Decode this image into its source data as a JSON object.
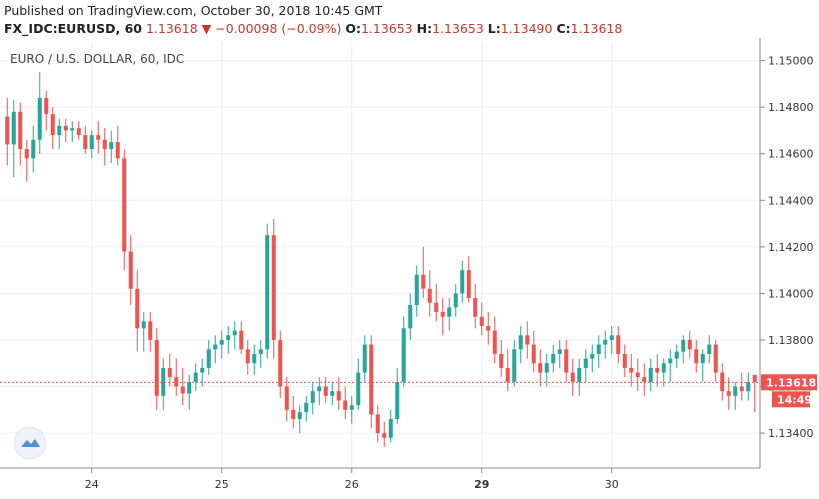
{
  "header": {
    "published": "Published on TradingView.com, October 30, 2018 10:45 GMT",
    "symbol": "FX_IDC:EURUSD, 60",
    "last": "1.13618",
    "change_arrow": "▼",
    "change": "−0.00098 (−0.09%)",
    "o_label": "O:",
    "o_value": "1.13653",
    "h_label": "H:",
    "h_value": "1.13653",
    "l_label": "L:",
    "l_value": "1.13490",
    "c_label": "C:",
    "c_value": "1.13618"
  },
  "colors": {
    "up": "#26a69a",
    "down": "#ef5350",
    "price_line": "#ef5350",
    "grid": "#eeeeee"
  },
  "chart_data": {
    "type": "candlestick",
    "title": "EURO / U.S. DOLLAR, 60, IDC",
    "ylim": [
      1.1325,
      1.1508
    ],
    "y_ticks": [
      "1.15000",
      "1.14800",
      "1.14600",
      "1.14400",
      "1.14200",
      "1.14000",
      "1.13800",
      "1.13600",
      "1.13400"
    ],
    "x_ticks": [
      "24",
      "25",
      "26",
      "29",
      "30"
    ],
    "x_tick_positions": [
      13,
      33,
      53,
      73,
      93
    ],
    "last_price_label": "1.13618",
    "countdown_label": "14:49",
    "last_price": 1.13618,
    "grid": true,
    "candles": [
      [
        1.1476,
        1.1484,
        1.1455,
        1.1464
      ],
      [
        1.1464,
        1.1483,
        1.145,
        1.1478
      ],
      [
        1.1478,
        1.1482,
        1.1455,
        1.1462
      ],
      [
        1.1462,
        1.1466,
        1.1448,
        1.1458
      ],
      [
        1.1458,
        1.1472,
        1.1452,
        1.1466
      ],
      [
        1.1466,
        1.1495,
        1.146,
        1.1484
      ],
      [
        1.1484,
        1.1487,
        1.147,
        1.1477
      ],
      [
        1.1477,
        1.148,
        1.1462,
        1.1468
      ],
      [
        1.1468,
        1.1475,
        1.1462,
        1.1472
      ],
      [
        1.1472,
        1.1475,
        1.1465,
        1.147
      ],
      [
        1.147,
        1.1474,
        1.1465,
        1.1471
      ],
      [
        1.1471,
        1.1474,
        1.1466,
        1.1468
      ],
      [
        1.1468,
        1.1472,
        1.146,
        1.1462
      ],
      [
        1.1462,
        1.147,
        1.1458,
        1.1468
      ],
      [
        1.1468,
        1.1474,
        1.146,
        1.1466
      ],
      [
        1.1466,
        1.1471,
        1.1455,
        1.1462
      ],
      [
        1.1462,
        1.147,
        1.1456,
        1.1465
      ],
      [
        1.1465,
        1.1472,
        1.1455,
        1.1458
      ],
      [
        1.1458,
        1.1462,
        1.141,
        1.1418
      ],
      [
        1.1418,
        1.1425,
        1.1395,
        1.1402
      ],
      [
        1.1402,
        1.141,
        1.1375,
        1.1385
      ],
      [
        1.1385,
        1.1392,
        1.1375,
        1.1388
      ],
      [
        1.1388,
        1.1392,
        1.1375,
        1.138
      ],
      [
        1.138,
        1.1385,
        1.135,
        1.1356
      ],
      [
        1.1356,
        1.1372,
        1.135,
        1.1368
      ],
      [
        1.1368,
        1.1374,
        1.136,
        1.1364
      ],
      [
        1.1364,
        1.1372,
        1.1356,
        1.136
      ],
      [
        1.136,
        1.1368,
        1.1352,
        1.1357
      ],
      [
        1.1357,
        1.1365,
        1.135,
        1.1362
      ],
      [
        1.1362,
        1.137,
        1.1358,
        1.1366
      ],
      [
        1.1366,
        1.1372,
        1.136,
        1.1368
      ],
      [
        1.1368,
        1.138,
        1.1365,
        1.1376
      ],
      [
        1.1376,
        1.1382,
        1.137,
        1.1378
      ],
      [
        1.1378,
        1.1384,
        1.1372,
        1.138
      ],
      [
        1.138,
        1.1386,
        1.1374,
        1.1382
      ],
      [
        1.1382,
        1.1388,
        1.1376,
        1.1384
      ],
      [
        1.1384,
        1.1388,
        1.1374,
        1.1376
      ],
      [
        1.1376,
        1.138,
        1.1365,
        1.137
      ],
      [
        1.137,
        1.1378,
        1.1365,
        1.1374
      ],
      [
        1.1374,
        1.138,
        1.1368,
        1.1376
      ],
      [
        1.1376,
        1.143,
        1.1372,
        1.1425
      ],
      [
        1.1425,
        1.1432,
        1.1372,
        1.138
      ],
      [
        1.138,
        1.1384,
        1.1355,
        1.136
      ],
      [
        1.136,
        1.1364,
        1.1345,
        1.135
      ],
      [
        1.135,
        1.1356,
        1.1342,
        1.1346
      ],
      [
        1.1346,
        1.1352,
        1.134,
        1.1349
      ],
      [
        1.1349,
        1.1356,
        1.1345,
        1.1353
      ],
      [
        1.1353,
        1.1362,
        1.1348,
        1.1358
      ],
      [
        1.1358,
        1.1364,
        1.1352,
        1.136
      ],
      [
        1.136,
        1.1364,
        1.1353,
        1.1356
      ],
      [
        1.1356,
        1.1362,
        1.1352,
        1.1358
      ],
      [
        1.1358,
        1.1364,
        1.135,
        1.1354
      ],
      [
        1.1354,
        1.136,
        1.1346,
        1.135
      ],
      [
        1.135,
        1.1356,
        1.1344,
        1.1352
      ],
      [
        1.1352,
        1.1372,
        1.135,
        1.1366
      ],
      [
        1.1366,
        1.1382,
        1.1362,
        1.1378
      ],
      [
        1.1378,
        1.1382,
        1.1342,
        1.1348
      ],
      [
        1.1348,
        1.1352,
        1.1336,
        1.134
      ],
      [
        1.134,
        1.1345,
        1.1334,
        1.1338
      ],
      [
        1.1338,
        1.135,
        1.1336,
        1.1346
      ],
      [
        1.1346,
        1.1368,
        1.1344,
        1.1362
      ],
      [
        1.1362,
        1.139,
        1.136,
        1.1385
      ],
      [
        1.1385,
        1.14,
        1.138,
        1.1395
      ],
      [
        1.1395,
        1.1412,
        1.139,
        1.1408
      ],
      [
        1.1408,
        1.142,
        1.1398,
        1.1402
      ],
      [
        1.1402,
        1.141,
        1.139,
        1.1396
      ],
      [
        1.1396,
        1.1404,
        1.1388,
        1.1392
      ],
      [
        1.1392,
        1.1398,
        1.1382,
        1.139
      ],
      [
        1.139,
        1.1398,
        1.1384,
        1.1394
      ],
      [
        1.1394,
        1.1404,
        1.139,
        1.14
      ],
      [
        1.14,
        1.1414,
        1.1396,
        1.141
      ],
      [
        1.141,
        1.1416,
        1.1396,
        1.1398
      ],
      [
        1.1398,
        1.1404,
        1.1385,
        1.139
      ],
      [
        1.139,
        1.1396,
        1.1382,
        1.1386
      ],
      [
        1.1386,
        1.1392,
        1.1378,
        1.1384
      ],
      [
        1.1384,
        1.139,
        1.137,
        1.1374
      ],
      [
        1.1374,
        1.138,
        1.1364,
        1.1368
      ],
      [
        1.1368,
        1.1376,
        1.1358,
        1.1362
      ],
      [
        1.1362,
        1.138,
        1.136,
        1.1376
      ],
      [
        1.1376,
        1.1386,
        1.137,
        1.1382
      ],
      [
        1.1382,
        1.1388,
        1.1372,
        1.1378
      ],
      [
        1.1378,
        1.1384,
        1.1366,
        1.137
      ],
      [
        1.137,
        1.1376,
        1.136,
        1.1366
      ],
      [
        1.1366,
        1.1374,
        1.136,
        1.137
      ],
      [
        1.137,
        1.1378,
        1.1366,
        1.1374
      ],
      [
        1.1374,
        1.138,
        1.1368,
        1.1376
      ],
      [
        1.1376,
        1.138,
        1.1362,
        1.1366
      ],
      [
        1.1366,
        1.1372,
        1.1356,
        1.1362
      ],
      [
        1.1362,
        1.1372,
        1.1356,
        1.1368
      ],
      [
        1.1368,
        1.1376,
        1.1362,
        1.1372
      ],
      [
        1.1372,
        1.1378,
        1.1366,
        1.1374
      ],
      [
        1.1374,
        1.1382,
        1.1368,
        1.1378
      ],
      [
        1.1378,
        1.1384,
        1.1372,
        1.138
      ],
      [
        1.138,
        1.1386,
        1.1374,
        1.1382
      ],
      [
        1.1382,
        1.1386,
        1.137,
        1.1374
      ],
      [
        1.1374,
        1.1378,
        1.1364,
        1.1368
      ],
      [
        1.1368,
        1.1374,
        1.136,
        1.1366
      ],
      [
        1.1366,
        1.1372,
        1.1358,
        1.1364
      ],
      [
        1.1364,
        1.137,
        1.1356,
        1.1362
      ],
      [
        1.1362,
        1.1372,
        1.1358,
        1.1368
      ],
      [
        1.1368,
        1.1374,
        1.136,
        1.1366
      ],
      [
        1.1366,
        1.1372,
        1.136,
        1.137
      ],
      [
        1.137,
        1.1376,
        1.1362,
        1.1372
      ],
      [
        1.1372,
        1.1378,
        1.1368,
        1.1375
      ],
      [
        1.1375,
        1.1382,
        1.137,
        1.138
      ],
      [
        1.138,
        1.1384,
        1.1372,
        1.1376
      ],
      [
        1.1376,
        1.138,
        1.1366,
        1.137
      ],
      [
        1.137,
        1.1376,
        1.1362,
        1.1374
      ],
      [
        1.1374,
        1.1382,
        1.137,
        1.1378
      ],
      [
        1.1378,
        1.138,
        1.1362,
        1.1366
      ],
      [
        1.1366,
        1.137,
        1.1354,
        1.1358
      ],
      [
        1.1358,
        1.1364,
        1.135,
        1.1356
      ],
      [
        1.1356,
        1.1362,
        1.135,
        1.136
      ],
      [
        1.136,
        1.1366,
        1.1354,
        1.1358
      ],
      [
        1.1358,
        1.1366,
        1.1354,
        1.1362
      ],
      [
        1.1365,
        1.1365,
        1.1349,
        1.1362
      ]
    ]
  }
}
